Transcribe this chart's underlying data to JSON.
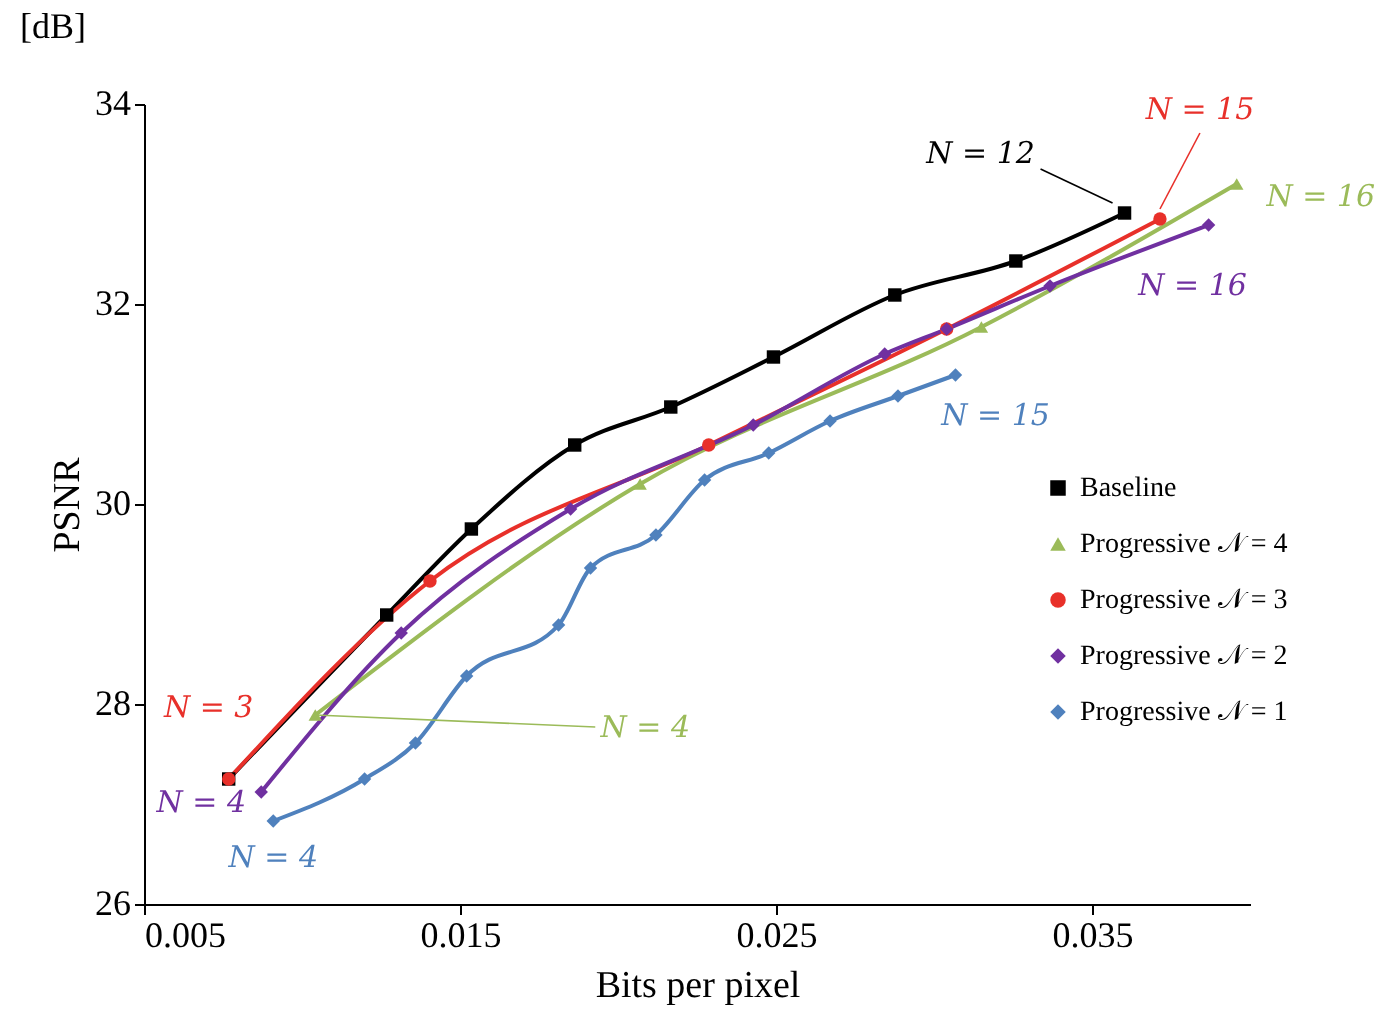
{
  "chart_data": {
    "type": "line",
    "xlabel": "Bits per pixel",
    "ylabel": "PSNR",
    "xlim": [
      0.005,
      0.04
    ],
    "xticks": [
      0.005,
      0.015,
      0.025,
      0.035
    ],
    "ylim": [
      26,
      34
    ],
    "yticks": [
      26,
      28,
      30,
      32,
      34
    ],
    "grid": false,
    "legend": "right",
    "line_style": "solid",
    "series": [
      {
        "name": "Baseline",
        "color": "#000000",
        "marker": "square",
        "x": [
          0.00768,
          0.01268,
          0.01536,
          0.01863,
          0.02167,
          0.02492,
          0.02876,
          0.03259,
          0.03603
        ],
        "values": [
          27.25,
          28.89,
          29.75,
          30.59,
          30.97,
          31.47,
          32.09,
          32.43,
          32.91
        ]
      },
      {
        "name": "Progressive 𝒩 = 4",
        "color": "#9bbb59",
        "marker": "triangle",
        "x": [
          0.01042,
          0.0207,
          0.0315,
          0.03958
        ],
        "values": [
          27.89,
          30.2,
          31.77,
          33.2
        ]
      },
      {
        "name": "Progressive 𝒩 = 3",
        "color": "#e8302a",
        "marker": "circle",
        "x": [
          0.00768,
          0.01405,
          0.02287,
          0.0304,
          0.03715
        ],
        "values": [
          27.25,
          29.23,
          30.59,
          31.75,
          32.85
        ]
      },
      {
        "name": "Progressive 𝒩 = 2",
        "color": "#7030a0",
        "marker": "diamond",
        "x": [
          0.00871,
          0.01314,
          0.0185,
          0.02428,
          0.02844,
          0.0304,
          0.03367,
          0.03869
        ],
        "values": [
          27.12,
          28.71,
          29.95,
          30.79,
          31.5,
          31.75,
          32.18,
          32.79
        ]
      },
      {
        "name": "Progressive 𝒩 = 1",
        "color": "#4f81bd",
        "marker": "diamond",
        "x": [
          0.00909,
          0.01198,
          0.01359,
          0.01521,
          0.01812,
          0.01913,
          0.0212,
          0.02274,
          0.02477,
          0.02671,
          0.02886,
          0.03068
        ],
        "values": [
          26.83,
          27.25,
          27.61,
          28.28,
          28.79,
          29.36,
          29.69,
          30.24,
          30.51,
          30.83,
          31.08,
          31.29
        ]
      }
    ],
    "annotations": [
      "[dB]",
      {
        "text": "N = 12",
        "x": 0.03603,
        "y": 32.91
      },
      {
        "text": "N = 15",
        "x": 0.03715,
        "y": 32.85
      },
      {
        "text": "N = 16",
        "x": 0.03958,
        "y": 33.2
      },
      {
        "text": "N = 16",
        "x": 0.03869,
        "y": 32.79
      },
      {
        "text": "N = 15",
        "x": 0.03068,
        "y": 31.29
      },
      {
        "text": "N = 3",
        "x": 0.00768,
        "y": 27.25
      },
      {
        "text": "N = 4",
        "x": 0.01042,
        "y": 27.89
      },
      {
        "text": "N = 4",
        "x": 0.00871,
        "y": 27.12
      },
      {
        "text": "N = 4",
        "x": 0.00909,
        "y": 26.83
      }
    ]
  }
}
